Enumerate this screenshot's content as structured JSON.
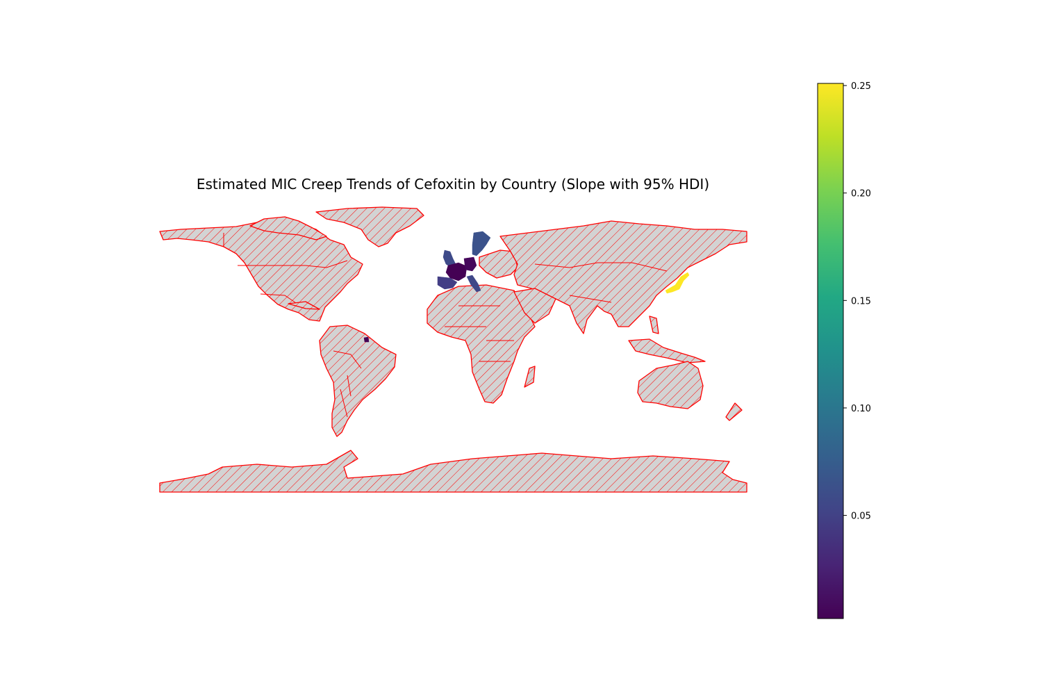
{
  "chart_data": {
    "type": "choropleth",
    "title": "Estimated MIC Creep Trends of Cefoxitin by Country (Slope with 95% HDI)",
    "projection": "plate carree",
    "no_data_style": "grey fill with red diagonal hatch, red borders",
    "colormap": "viridis",
    "colorbar": {
      "orientation": "vertical",
      "position": "right",
      "min": 0.002,
      "max": 0.251,
      "ticks": [
        0.05,
        0.1,
        0.15,
        0.2,
        0.25
      ],
      "tick_labels": [
        "0.05",
        "0.10",
        "0.15",
        "0.20",
        "0.25"
      ]
    },
    "series": [
      {
        "country": "Japan",
        "value": 0.25
      },
      {
        "country": "Sweden",
        "value": 0.07
      },
      {
        "country": "United Kingdom",
        "value": 0.07
      },
      {
        "country": "Spain",
        "value": 0.04
      },
      {
        "country": "Portugal",
        "value": 0.04
      },
      {
        "country": "France",
        "value": 0.005
      },
      {
        "country": "Germany",
        "value": 0.015
      },
      {
        "country": "Italy",
        "value": 0.035
      },
      {
        "country": "Switzerland",
        "value": 0.02
      },
      {
        "country": "Austria",
        "value": 0.02
      },
      {
        "country": "French Guiana",
        "value": 0.005
      }
    ]
  }
}
